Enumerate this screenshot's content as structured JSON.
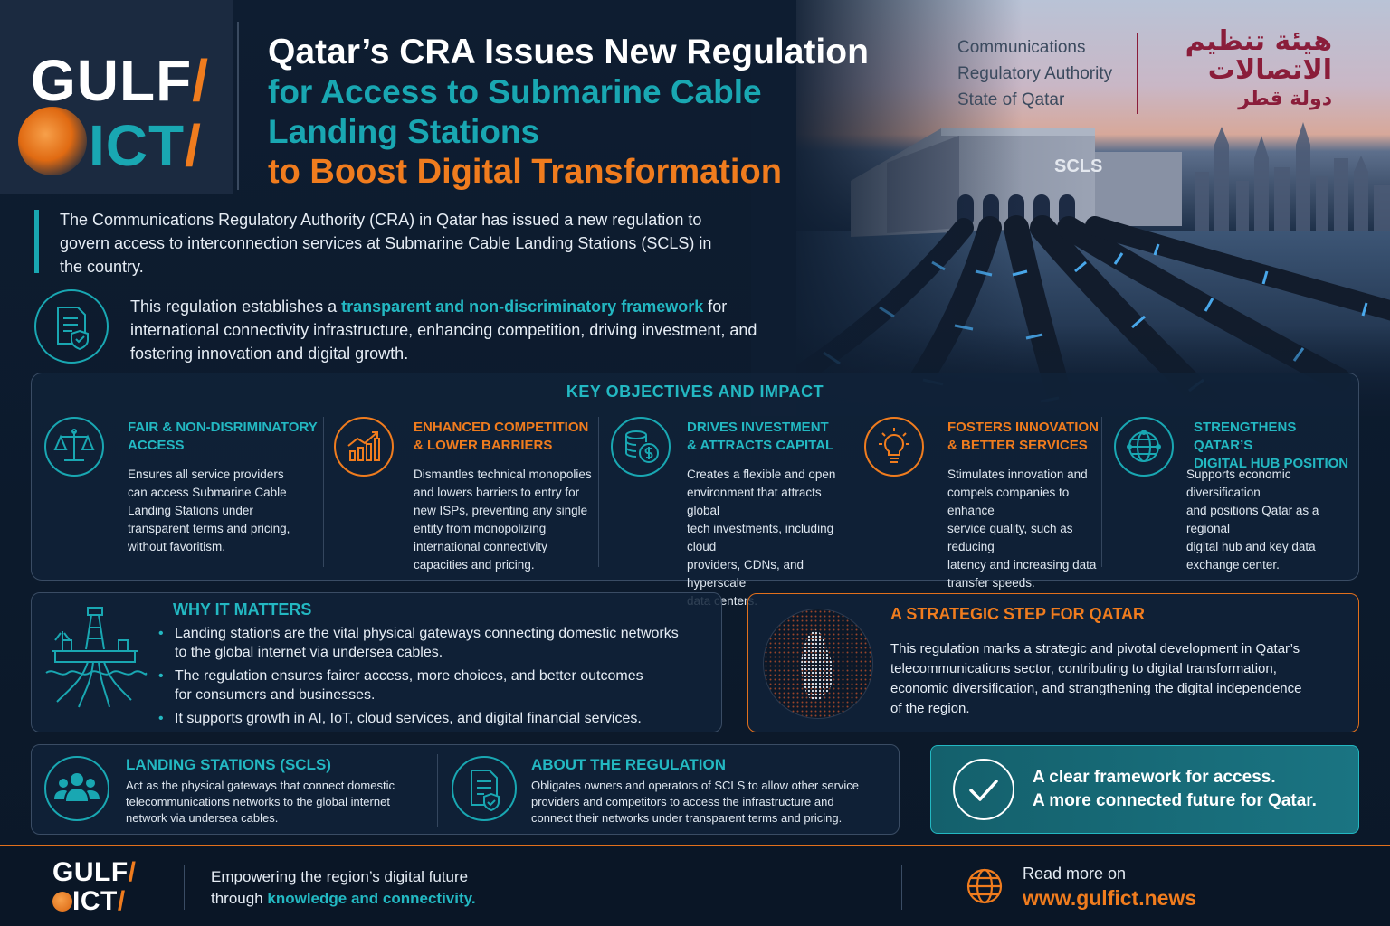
{
  "brand": {
    "logo_line1": "GULF",
    "logo_line2": "ICT",
    "slash": "/",
    "accent_orange": "#f07c1e",
    "accent_teal": "#19a7b2",
    "background": "#0d1b2e"
  },
  "title": {
    "line1": "Qatar’s CRA Issues New Regulation",
    "line2": "for Access to Submarine Cable",
    "line3": "Landing Stations",
    "line4": "to Boost Digital Transformation"
  },
  "authority": {
    "en_line1": "Communications",
    "en_line2": "Regulatory Authority",
    "en_line3": "State of Qatar",
    "ar_line1": "هيئة تنظيم",
    "ar_line2": "الاتصالات",
    "ar_line3": "دولة قطر"
  },
  "hero": {
    "building_sign": "SCLS"
  },
  "intro": {
    "text": "The Communications Regulatory Authority (CRA) in Qatar has issued a new regulation to govern access to interconnection services at Submarine Cable Landing Stations (SCLS) in the country."
  },
  "regulation_summary": {
    "icon": "document-shield-icon",
    "prefix": "This regulation establishes a ",
    "highlight": "transparent and non-discriminatory framework",
    "suffix": " for international connectivity infrastructure, enhancing competition, driving investment, and fostering innovation and digital growth."
  },
  "objectives": {
    "heading": "KEY OBJECTIVES AND IMPACT",
    "items": [
      {
        "icon": "scales-icon",
        "title_l1": "FAIR & NON-DISRIMINATORY",
        "title_l2": "ACCESS",
        "desc": [
          "Ensures all service providers",
          "can access Submarine Cable",
          "Landing Stations under",
          "transparent terms and pricing,",
          "without favoritism."
        ]
      },
      {
        "icon": "growth-chart-icon",
        "title_l1": "ENHANCED COMPETITION",
        "title_l2": "& LOWER BARRIERS",
        "desc": [
          "Dismantles technical monopolies",
          "and lowers barriers to entry for",
          "new ISPs, preventing any single",
          "entity from monopolizing",
          "international connectivity",
          "capacities and pricing."
        ]
      },
      {
        "icon": "coins-dollar-icon",
        "title_l1": "DRIVES INVESTMENT",
        "title_l2": "& ATTRACTS CAPITAL",
        "desc": [
          "Creates a flexible and open",
          "environment that attracts global",
          "tech investments, including cloud",
          "providers, CDNs, and hyperscale",
          "data centers."
        ]
      },
      {
        "icon": "lightbulb-icon",
        "title_l1": "FOSTERS INNOVATION",
        "title_l2": "& BETTER SERVICES",
        "desc": [
          "Stimulates innovation and",
          "compels companies to enhance",
          "service quality, such as reducing",
          "latency and increasing data",
          "transfer speeds."
        ]
      },
      {
        "icon": "globe-network-icon",
        "title_l1": "STRENGTHENS QATAR’S",
        "title_l2": "DIGITAL HUB POSITION",
        "desc": [
          "Supports economic diversification",
          "and positions Qatar as a regional",
          "digital hub and key data",
          "exchange center."
        ]
      }
    ]
  },
  "why": {
    "title": "WHY IT MATTERS",
    "icon": "landing-station-icon",
    "items": [
      [
        "Landing stations are the vital physical gateways connecting domestic networks",
        "to the global internet via undersea cables."
      ],
      [
        "The regulation ensures fairer access, more choices, and better outcomes",
        "for consumers and businesses."
      ],
      [
        "It supports growth in AI, IoT, cloud services, and digital financial services."
      ]
    ]
  },
  "strategic": {
    "title": "A STRATEGIC STEP FOR QATAR",
    "icon": "qatar-map-icon",
    "lines": [
      "This regulation marks a strategic and pivotal development in Qatar’s",
      "telecommunications sector, contributing to digital transformation,",
      "economic diversification, and strangthening the digital independence",
      "of the region."
    ]
  },
  "landing": {
    "title": "LANDING STATIONS (SCLS)",
    "icon": "people-group-icon",
    "lines": [
      "Act as the physical gateways that connect domestic",
      "telecommunications networks to the global internet",
      "network via undersea cables."
    ]
  },
  "about": {
    "title": "ABOUT THE REGULATION",
    "icon": "document-check-icon",
    "lines": [
      "Obligates owners and operators of SCLS to allow other service",
      "providers and competitors to access the infrastructure and",
      "connect their networks under transparent terms and pricing."
    ]
  },
  "callout": {
    "icon": "checkmark-circle-icon",
    "line1": "A clear framework for access.",
    "line2": "A more connected future for Qatar."
  },
  "footer": {
    "tag_line1": "Empowering the region’s digital future",
    "tag_prefix": "through ",
    "tag_highlight": "knowledge and connectivity.",
    "icon": "globe-icon",
    "read_more": "Read more on",
    "url": "www.gulfict.news"
  }
}
